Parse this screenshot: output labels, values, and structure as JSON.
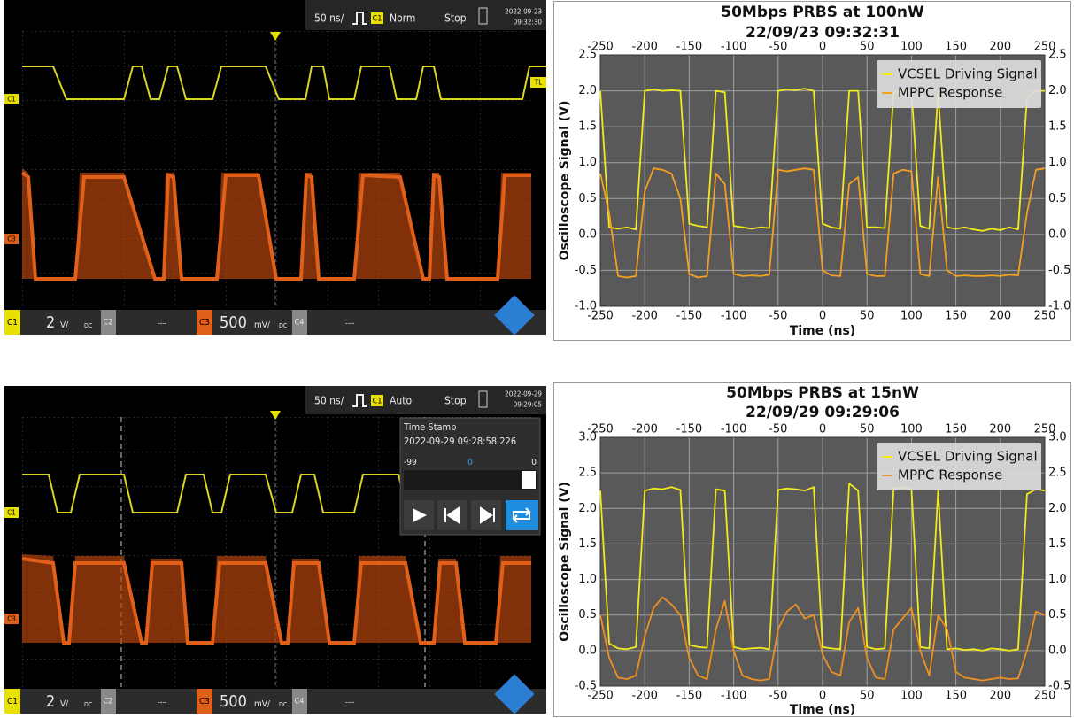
{
  "chart_data": [
    {
      "type": "line",
      "title": "50Mbps PRBS at 100nW",
      "subtitle": "22/09/23 09:32:31",
      "x_label": "Time (ns)",
      "y_label": "Oscilloscope Signal (V)",
      "x": [
        -250,
        -240,
        -230,
        -220,
        -210,
        -200,
        -190,
        -180,
        -170,
        -160,
        -150,
        -140,
        -130,
        -120,
        -110,
        -100,
        -90,
        -80,
        -70,
        -60,
        -50,
        -40,
        -30,
        -20,
        -10,
        0,
        10,
        20,
        30,
        40,
        50,
        60,
        70,
        80,
        90,
        100,
        110,
        120,
        130,
        140,
        150,
        160,
        170,
        180,
        190,
        200,
        210,
        220,
        230,
        240,
        250
      ],
      "series": [
        {
          "name": "VCSEL Driving Signal",
          "color": "#f2ea1c",
          "values": [
            2.0,
            0.1,
            0.08,
            0.1,
            0.07,
            2.0,
            2.02,
            2.0,
            2.01,
            2.0,
            0.15,
            0.12,
            0.1,
            2.0,
            1.98,
            0.12,
            0.1,
            0.08,
            0.1,
            0.09,
            2.0,
            2.02,
            2.01,
            2.03,
            2.0,
            0.15,
            0.1,
            0.08,
            2.0,
            2.0,
            0.1,
            0.1,
            0.09,
            1.98,
            2.0,
            2.0,
            0.12,
            0.08,
            1.98,
            0.1,
            0.08,
            0.1,
            0.07,
            0.05,
            0.08,
            0.06,
            0.1,
            0.07,
            1.9,
            2.0,
            2.0
          ]
        },
        {
          "name": "MPPC Response",
          "color": "#f5a01e",
          "values": [
            0.85,
            0.3,
            -0.58,
            -0.6,
            -0.58,
            0.6,
            0.92,
            0.9,
            0.85,
            0.5,
            -0.55,
            -0.6,
            -0.58,
            0.85,
            0.7,
            -0.55,
            -0.58,
            -0.57,
            -0.58,
            -0.56,
            0.9,
            0.88,
            0.9,
            0.92,
            0.9,
            -0.5,
            -0.57,
            -0.58,
            0.7,
            0.8,
            -0.55,
            -0.58,
            -0.58,
            0.85,
            0.9,
            0.88,
            -0.55,
            -0.58,
            0.8,
            -0.5,
            -0.58,
            -0.57,
            -0.58,
            -0.58,
            -0.57,
            -0.58,
            -0.56,
            -0.57,
            0.3,
            0.9,
            0.92
          ]
        }
      ],
      "xlim": [
        -250,
        250
      ],
      "xticks": [
        -250,
        -200,
        -150,
        -100,
        -50,
        0,
        50,
        100,
        150,
        200,
        250
      ],
      "ylim": [
        -1,
        2.5
      ],
      "yticks": [
        {
          "value": -1,
          "label": "-1.0"
        },
        -0.5,
        {
          "value": 0,
          "label": "0.0"
        },
        0.5,
        {
          "value": 1,
          "label": "1.0"
        },
        1.5,
        {
          "value": 2,
          "label": "2.0"
        },
        2.5
      ],
      "grid": true,
      "legend": "upper right"
    },
    {
      "type": "line",
      "title": "50Mbps PRBS at 15nW",
      "subtitle": "22/09/29 09:29:06",
      "x_label": "Time (ns)",
      "y_label": "Oscilloscope Signal (V)",
      "x": [
        -250,
        -240,
        -230,
        -220,
        -210,
        -200,
        -190,
        -180,
        -170,
        -160,
        -150,
        -140,
        -130,
        -120,
        -110,
        -100,
        -90,
        -80,
        -70,
        -60,
        -50,
        -40,
        -30,
        -20,
        -10,
        0,
        10,
        20,
        30,
        40,
        50,
        60,
        70,
        80,
        90,
        100,
        110,
        120,
        130,
        140,
        150,
        160,
        170,
        180,
        190,
        200,
        210,
        220,
        230,
        240,
        250
      ],
      "series": [
        {
          "name": "VCSEL Driving Signal",
          "color": "#f2ea1c",
          "values": [
            2.25,
            0.1,
            0.03,
            0.02,
            0.05,
            2.25,
            2.28,
            2.27,
            2.3,
            2.26,
            0.08,
            0.05,
            0.04,
            2.27,
            2.25,
            0.05,
            0.02,
            0.03,
            0.04,
            0.02,
            2.26,
            2.28,
            2.27,
            2.25,
            2.3,
            0.05,
            0.03,
            0.02,
            2.35,
            2.25,
            0.05,
            0.02,
            0.03,
            2.28,
            2.3,
            2.27,
            0.05,
            0.03,
            2.25,
            0.02,
            0.03,
            0.01,
            0.02,
            0.0,
            0.03,
            0.02,
            0.0,
            0.02,
            2.2,
            2.27,
            2.25
          ]
        },
        {
          "name": "MPPC Response",
          "color": "#f0901e",
          "values": [
            0.5,
            -0.1,
            -0.38,
            -0.4,
            -0.35,
            0.2,
            0.6,
            0.75,
            0.65,
            0.5,
            -0.1,
            -0.35,
            -0.4,
            0.3,
            0.7,
            0.0,
            -0.35,
            -0.4,
            -0.42,
            -0.4,
            0.3,
            0.55,
            0.65,
            0.45,
            0.5,
            -0.05,
            -0.3,
            -0.35,
            0.4,
            0.6,
            -0.1,
            -0.38,
            -0.4,
            0.3,
            0.45,
            0.6,
            0.0,
            -0.35,
            0.5,
            0.3,
            -0.3,
            -0.38,
            -0.4,
            -0.42,
            -0.4,
            -0.38,
            -0.4,
            -0.39,
            0.0,
            0.55,
            0.5
          ]
        }
      ],
      "xlim": [
        -250,
        250
      ],
      "xticks": [
        -250,
        -200,
        -150,
        -100,
        -50,
        0,
        50,
        100,
        150,
        200,
        250
      ],
      "ylim": [
        -0.5,
        3
      ],
      "yticks": [
        -0.5,
        {
          "value": 0,
          "label": "0.0"
        },
        0.5,
        {
          "value": 1,
          "label": "1.0"
        },
        1.5,
        {
          "value": 2,
          "label": "2.0"
        },
        2.5,
        {
          "value": 3,
          "label": "3.0"
        }
      ],
      "grid": true,
      "legend": "upper right"
    }
  ],
  "scopes": [
    {
      "timebase": "50 ns/",
      "trigger_source": "C1",
      "trigger_mode": "Norm",
      "run_state": "Stop",
      "date": "2022-09-23",
      "time": "09:32:30",
      "trace_labels": [
        "C1",
        "TL",
        "C3"
      ],
      "channels": [
        {
          "name": "C1",
          "scale": "2",
          "unit": "V/",
          "coupling": "DC"
        },
        {
          "name": "C2",
          "scale": "----"
        },
        {
          "name": "C3",
          "scale": "500",
          "unit": "mV/",
          "coupling": "DC"
        },
        {
          "name": "C4",
          "scale": "----"
        }
      ]
    },
    {
      "timebase": "50 ns/",
      "trigger_source": "C1",
      "trigger_mode": "Auto",
      "run_state": "Stop",
      "date": "2022-09-29",
      "time": "09:29:05",
      "trace_labels": [
        "C1",
        "C3"
      ],
      "channels": [
        {
          "name": "C1",
          "scale": "2",
          "unit": "V/",
          "coupling": "DC"
        },
        {
          "name": "C2",
          "scale": "----"
        },
        {
          "name": "C3",
          "scale": "500",
          "unit": "mV/",
          "coupling": "DC"
        },
        {
          "name": "C4",
          "scale": "----"
        }
      ],
      "time_stamp": {
        "title": "Time Stamp",
        "value": "2022-09-29 09:28:58.226",
        "range_start": "-99",
        "current": "0",
        "range_end": "0"
      }
    }
  ]
}
